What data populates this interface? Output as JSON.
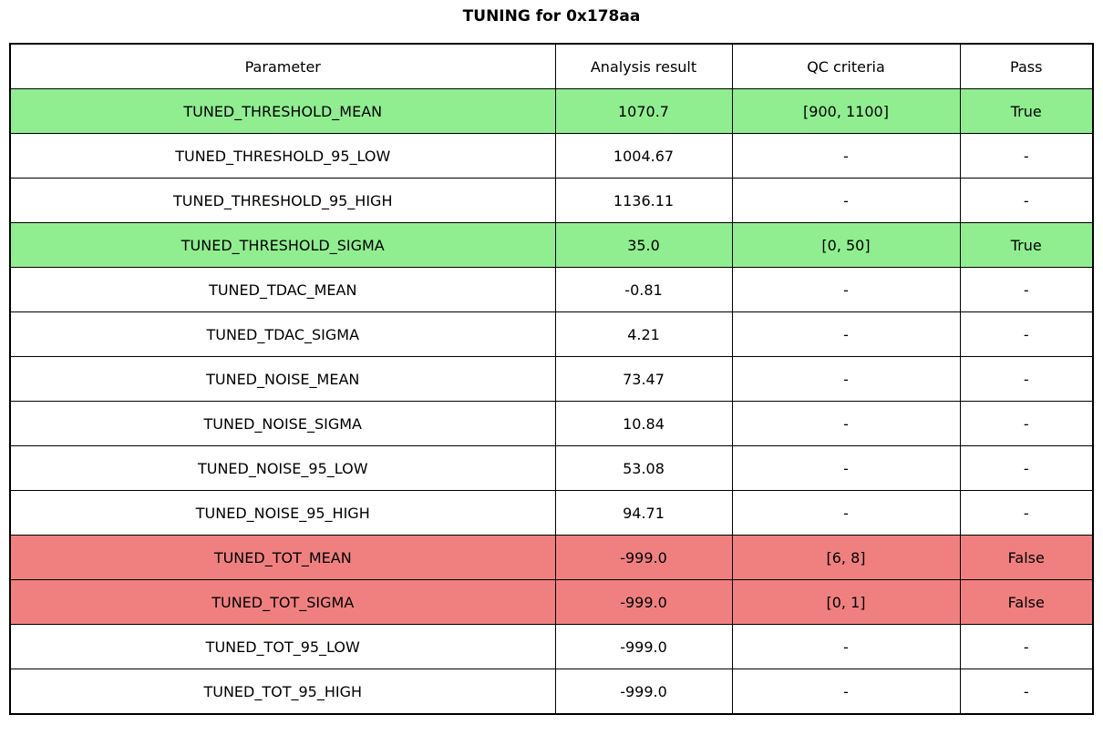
{
  "title": "TUNING for 0x178aa",
  "colors": {
    "pass": "#90EE90",
    "fail": "#F08080",
    "none": "#FFFFFF",
    "border": "#000000"
  },
  "table": {
    "headers": {
      "parameter": "Parameter",
      "result": "Analysis result",
      "qc": "QC criteria",
      "pass": "Pass"
    },
    "rows": [
      {
        "parameter": "TUNED_THRESHOLD_MEAN",
        "result": "1070.7",
        "qc": "[900, 1100]",
        "pass": "True",
        "status": "pass"
      },
      {
        "parameter": "TUNED_THRESHOLD_95_LOW",
        "result": "1004.67",
        "qc": "-",
        "pass": "-",
        "status": "none"
      },
      {
        "parameter": "TUNED_THRESHOLD_95_HIGH",
        "result": "1136.11",
        "qc": "-",
        "pass": "-",
        "status": "none"
      },
      {
        "parameter": "TUNED_THRESHOLD_SIGMA",
        "result": "35.0",
        "qc": "[0, 50]",
        "pass": "True",
        "status": "pass"
      },
      {
        "parameter": "TUNED_TDAC_MEAN",
        "result": "-0.81",
        "qc": "-",
        "pass": "-",
        "status": "none"
      },
      {
        "parameter": "TUNED_TDAC_SIGMA",
        "result": "4.21",
        "qc": "-",
        "pass": "-",
        "status": "none"
      },
      {
        "parameter": "TUNED_NOISE_MEAN",
        "result": "73.47",
        "qc": "-",
        "pass": "-",
        "status": "none"
      },
      {
        "parameter": "TUNED_NOISE_SIGMA",
        "result": "10.84",
        "qc": "-",
        "pass": "-",
        "status": "none"
      },
      {
        "parameter": "TUNED_NOISE_95_LOW",
        "result": "53.08",
        "qc": "-",
        "pass": "-",
        "status": "none"
      },
      {
        "parameter": "TUNED_NOISE_95_HIGH",
        "result": "94.71",
        "qc": "-",
        "pass": "-",
        "status": "none"
      },
      {
        "parameter": "TUNED_TOT_MEAN",
        "result": "-999.0",
        "qc": "[6, 8]",
        "pass": "False",
        "status": "fail"
      },
      {
        "parameter": "TUNED_TOT_SIGMA",
        "result": "-999.0",
        "qc": "[0, 1]",
        "pass": "False",
        "status": "fail"
      },
      {
        "parameter": "TUNED_TOT_95_LOW",
        "result": "-999.0",
        "qc": "-",
        "pass": "-",
        "status": "none"
      },
      {
        "parameter": "TUNED_TOT_95_HIGH",
        "result": "-999.0",
        "qc": "-",
        "pass": "-",
        "status": "none"
      }
    ]
  }
}
